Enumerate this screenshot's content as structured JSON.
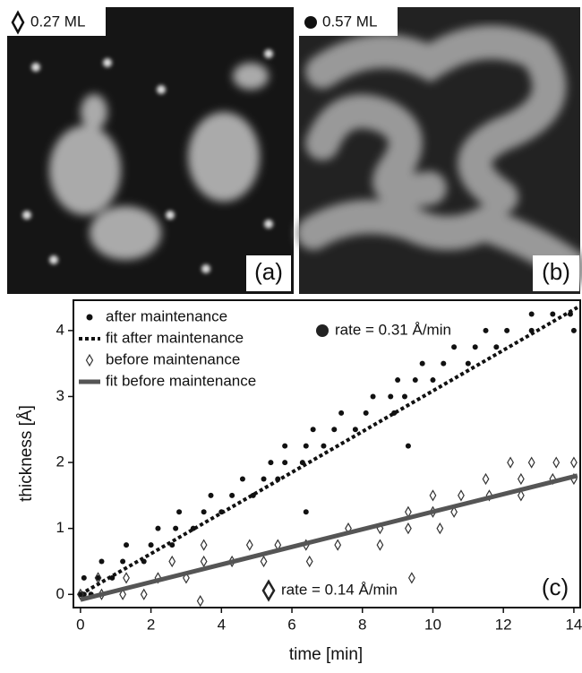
{
  "images": [
    {
      "coverage": "0.27 ML",
      "tag": "(a)"
    },
    {
      "coverage": "0.57 ML",
      "tag": "(b)"
    }
  ],
  "chart_data": {
    "type": "scatter",
    "tag": "(c)",
    "x_label": "time [min]",
    "y_label": "thickness [Å]",
    "xlim": [
      -0.2,
      14.18
    ],
    "ylim": [
      -0.2,
      4.46
    ],
    "xticks": [
      0,
      2,
      4,
      6,
      8,
      10,
      12,
      14
    ],
    "yticks": [
      0,
      1,
      2,
      3,
      4
    ],
    "legend": "upper left",
    "annotations": [
      {
        "text": "rate = 0.31 Å/min",
        "marker": "circle"
      },
      {
        "text": "rate = 0.14 Å/min",
        "marker": "diamond"
      }
    ],
    "series": [
      {
        "name": "after maintenance",
        "color": "#111111",
        "marker": "circle",
        "x": [
          0.0,
          0.1,
          0.3,
          0.1,
          0.5,
          0.9,
          0.6,
          1.2,
          1.8,
          1.3,
          2.0,
          2.6,
          2.2,
          2.7,
          3.2,
          2.8,
          3.5,
          4.0,
          3.7,
          4.3,
          4.9,
          4.6,
          5.2,
          5.6,
          5.4,
          5.8,
          6.3,
          5.8,
          6.4,
          6.9,
          6.6,
          7.2,
          7.8,
          7.4,
          8.1,
          8.9,
          8.3,
          8.8,
          9.2,
          9.0,
          9.5,
          10.0,
          9.7,
          10.3,
          11.0,
          10.6,
          11.2,
          11.8,
          11.5,
          12.1,
          12.8,
          12.8,
          13.4,
          13.9,
          6.4,
          9.3,
          14.0
        ],
        "y": [
          0,
          0,
          0,
          0.25,
          0.25,
          0.25,
          0.5,
          0.5,
          0.5,
          0.75,
          0.75,
          0.75,
          1.0,
          1.0,
          1.0,
          1.25,
          1.25,
          1.25,
          1.5,
          1.5,
          1.5,
          1.75,
          1.75,
          1.75,
          2.0,
          2.0,
          2.0,
          2.25,
          2.25,
          2.25,
          2.5,
          2.5,
          2.5,
          2.75,
          2.75,
          2.75,
          3.0,
          3.0,
          3.0,
          3.25,
          3.25,
          3.25,
          3.5,
          3.5,
          3.5,
          3.75,
          3.75,
          3.75,
          4.0,
          4.0,
          4.0,
          4.25,
          4.25,
          4.25,
          1.25,
          2.25,
          4.0
        ]
      },
      {
        "name": "fit after maintenance",
        "color": "#111111",
        "linestyle": "dotted",
        "x": [
          0,
          14.1
        ],
        "y": [
          0,
          4.35
        ]
      },
      {
        "name": "before maintenance",
        "color": "#333333",
        "marker": "diamond",
        "x": [
          0,
          0.6,
          1.2,
          1.8,
          0.5,
          1.3,
          2.2,
          3.0,
          2.6,
          3.5,
          4.3,
          5.2,
          6.5,
          3.5,
          4.8,
          5.6,
          6.4,
          7.3,
          8.5,
          7.6,
          8.5,
          9.3,
          10.2,
          9.3,
          10.0,
          10.6,
          10.0,
          10.8,
          11.6,
          12.5,
          11.5,
          12.5,
          13.4,
          14.0,
          12.2,
          12.8,
          13.5,
          14.0,
          3.4,
          9.4
        ],
        "y": [
          0,
          0,
          0,
          0,
          0.25,
          0.25,
          0.25,
          0.25,
          0.5,
          0.5,
          0.5,
          0.5,
          0.5,
          0.75,
          0.75,
          0.75,
          0.75,
          0.75,
          0.75,
          1.0,
          1.0,
          1.0,
          1.0,
          1.25,
          1.25,
          1.25,
          1.5,
          1.5,
          1.5,
          1.5,
          1.75,
          1.75,
          1.75,
          1.75,
          2.0,
          2.0,
          2.0,
          2.0,
          -0.1,
          0.25
        ]
      },
      {
        "name": "fit before maintenance",
        "color": "#555555",
        "linestyle": "solid",
        "x": [
          0,
          14.1
        ],
        "y": [
          -0.08,
          1.8
        ]
      }
    ]
  }
}
